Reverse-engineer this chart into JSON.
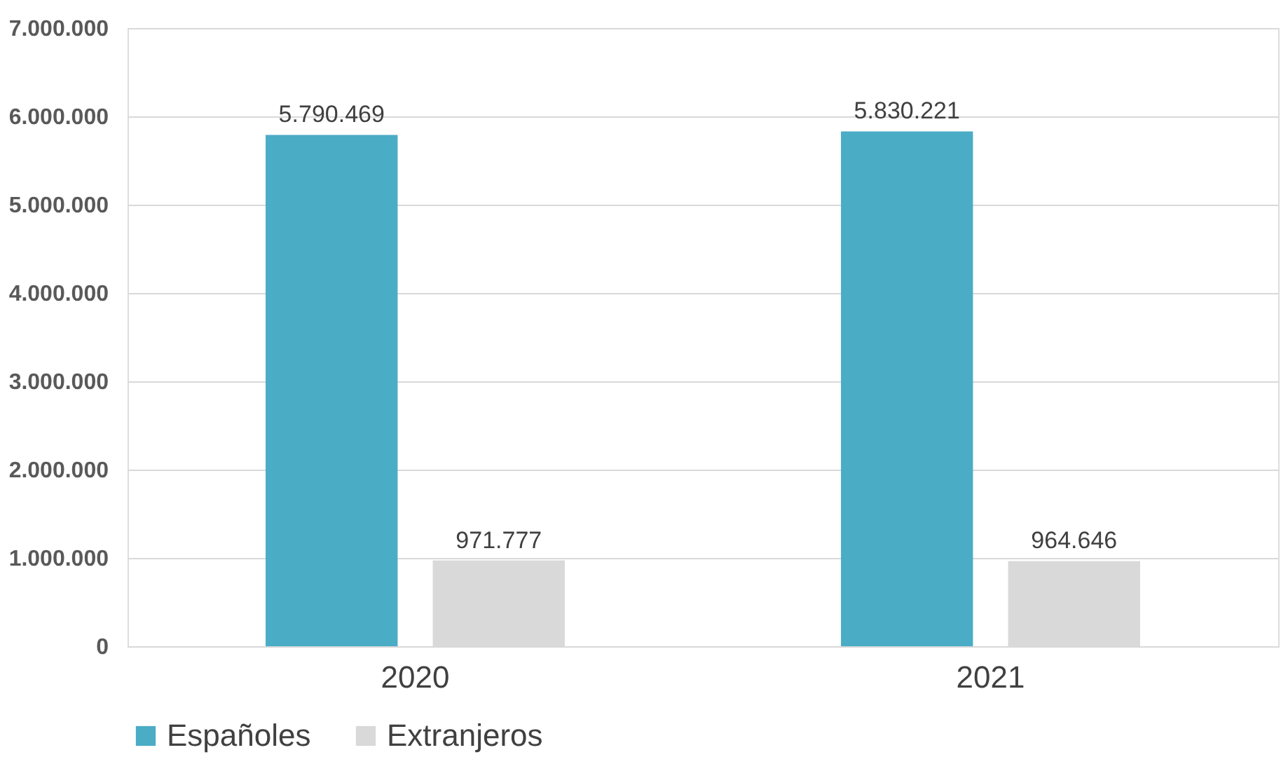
{
  "chart_data": {
    "type": "bar",
    "categories": [
      "2020",
      "2021"
    ],
    "series": [
      {
        "name": "Españoles",
        "color": "#4bacc6",
        "values": [
          5790469,
          5830221
        ],
        "value_labels": [
          "5.790.469",
          "5.830.221"
        ]
      },
      {
        "name": "Extranjeros",
        "color": "#d9d9d9",
        "values": [
          971777,
          964646
        ],
        "value_labels": [
          "971.777",
          "964.646"
        ]
      }
    ],
    "ylim": [
      0,
      7000000
    ],
    "yticks": [
      {
        "value": 0,
        "label": "0"
      },
      {
        "value": 1000000,
        "label": "1.000.000"
      },
      {
        "value": 2000000,
        "label": "2.000.000"
      },
      {
        "value": 3000000,
        "label": "3.000.000"
      },
      {
        "value": 4000000,
        "label": "4.000.000"
      },
      {
        "value": 5000000,
        "label": "5.000.000"
      },
      {
        "value": 6000000,
        "label": "6.000.000"
      },
      {
        "value": 7000000,
        "label": "7.000.000"
      }
    ],
    "grid": "y",
    "legend": "bottom"
  }
}
